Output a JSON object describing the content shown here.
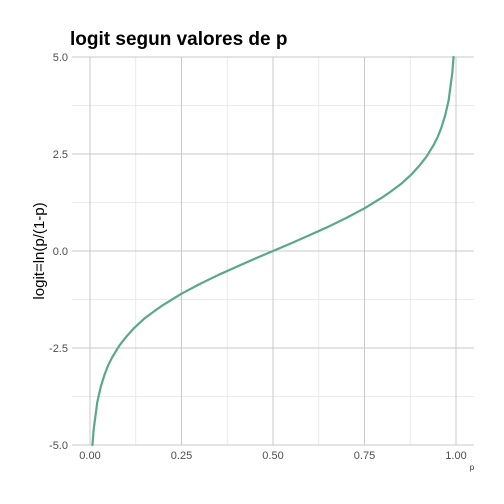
{
  "chart_data": {
    "type": "line",
    "title": "logit segun valores de p",
    "xlabel": "p",
    "ylabel": "logit=ln(p/(1-p)",
    "xlim": [
      0,
      1
    ],
    "ylim": [
      -5,
      5
    ],
    "xticks": [
      0,
      0.25,
      0.5,
      0.75,
      1
    ],
    "xtick_labels": [
      "0.00",
      "0.25",
      "0.50",
      "0.75",
      "1.00"
    ],
    "yticks": [
      -5,
      -2.5,
      0,
      2.5,
      5
    ],
    "ytick_labels": [
      "-5.0",
      "-2.5",
      "0.0",
      "2.5",
      "5.0"
    ],
    "grid": true,
    "line_color": "#5aa88a",
    "series": [
      {
        "x": [
          0.0067,
          0.01,
          0.02,
          0.03,
          0.04,
          0.05,
          0.06,
          0.08,
          0.1,
          0.12,
          0.15,
          0.18,
          0.2,
          0.25,
          0.3,
          0.35,
          0.4,
          0.45,
          0.5,
          0.55,
          0.6,
          0.65,
          0.7,
          0.75,
          0.8,
          0.82,
          0.85,
          0.88,
          0.9,
          0.92,
          0.94,
          0.95,
          0.96,
          0.97,
          0.98,
          0.99,
          0.9933
        ],
        "y": [
          -5.0,
          -4.6,
          -3.89,
          -3.48,
          -3.18,
          -2.94,
          -2.75,
          -2.44,
          -2.2,
          -1.99,
          -1.73,
          -1.52,
          -1.39,
          -1.1,
          -0.85,
          -0.62,
          -0.41,
          -0.2,
          0.0,
          0.2,
          0.41,
          0.62,
          0.85,
          1.1,
          1.39,
          1.52,
          1.73,
          1.99,
          2.2,
          2.44,
          2.75,
          2.94,
          3.18,
          3.48,
          3.89,
          4.6,
          5.0
        ]
      }
    ]
  }
}
